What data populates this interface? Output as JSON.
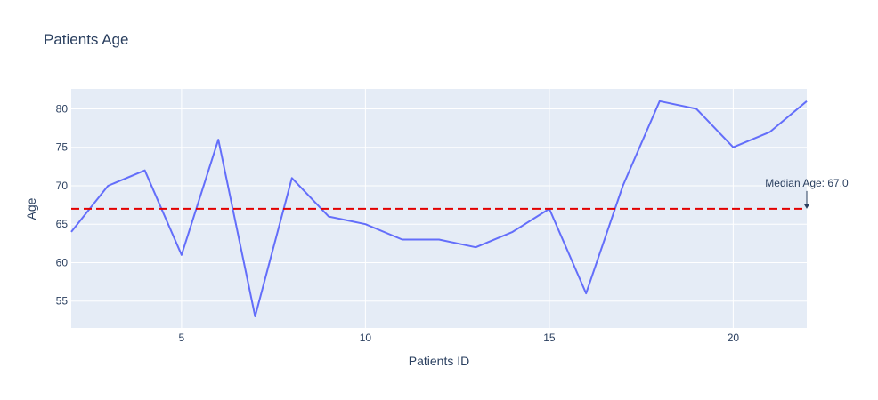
{
  "chart_data": {
    "type": "line",
    "title": "Patients Age",
    "xlabel": "Patients ID",
    "ylabel": "Age",
    "xlim": [
      2,
      22
    ],
    "ylim": [
      51.5,
      82.6
    ],
    "grid": true,
    "x_ticks": [
      5,
      10,
      15,
      20
    ],
    "y_ticks": [
      55,
      60,
      65,
      70,
      75,
      80
    ],
    "series": [
      {
        "x": [
          2,
          3,
          4,
          5,
          6,
          7,
          8,
          9,
          10,
          11,
          12,
          13,
          14,
          15,
          16,
          17,
          18,
          19,
          20,
          21,
          22
        ],
        "y": [
          64,
          70,
          72,
          61,
          76,
          53,
          71,
          66,
          65,
          63,
          63,
          62,
          64,
          67,
          56,
          70,
          81,
          80,
          75,
          77,
          81
        ],
        "color": "#636efa"
      }
    ],
    "reference_line": {
      "y": 67,
      "color": "#e30000",
      "style": "dashed"
    },
    "annotation": {
      "text": "Median Age: 67.0",
      "x": 22,
      "y": 67
    }
  },
  "colors": {
    "plot_bg": "#e5ecf6",
    "grid": "#ffffff",
    "text": "#2a3f5f"
  }
}
